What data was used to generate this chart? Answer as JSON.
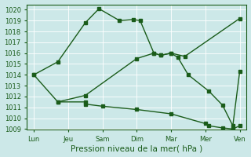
{
  "background_color": "#cce8e8",
  "grid_color": "#ffffff",
  "line_color": "#1a5c1a",
  "xlabel": "Pression niveau de la mer( hPa )",
  "ylim": [
    1009,
    1020.5
  ],
  "yticks": [
    1009,
    1010,
    1011,
    1012,
    1013,
    1014,
    1015,
    1016,
    1017,
    1018,
    1019,
    1020
  ],
  "x_labels": [
    "Lun",
    "Jeu",
    "Sam",
    "Dim",
    "Mar",
    "Mer",
    "Ven"
  ],
  "x_positions": [
    0,
    1,
    2,
    3,
    4,
    5,
    6
  ],
  "xlim": [
    -0.2,
    6.2
  ],
  "series1_x": [
    0,
    0.7,
    1.5,
    1.9,
    2.5,
    2.9,
    3.1,
    3.5,
    3.7,
    4.0,
    4.4,
    6.0
  ],
  "series1_y": [
    1014.0,
    1015.2,
    1018.8,
    1020.1,
    1019.0,
    1019.1,
    1019.0,
    1016.0,
    1015.8,
    1016.0,
    1015.7,
    1019.2
  ],
  "series2_x": [
    0.7,
    1.5,
    3.0,
    3.5,
    3.7,
    4.0,
    4.2,
    4.5,
    5.1,
    5.5,
    5.8,
    6.0
  ],
  "series2_y": [
    1011.5,
    1012.1,
    1015.5,
    1016.0,
    1015.8,
    1016.0,
    1015.6,
    1014.0,
    1012.5,
    1011.2,
    1009.3,
    1014.3
  ],
  "series3_x": [
    0,
    0.7,
    1.5,
    1.5,
    2.0,
    3.0,
    4.0,
    5.0,
    5.1,
    5.5,
    5.8,
    6.0
  ],
  "series3_y": [
    1014.0,
    1011.5,
    1011.5,
    1011.3,
    1011.1,
    1010.8,
    1010.4,
    1009.5,
    1009.3,
    1009.1,
    1009.0,
    1009.3
  ],
  "marker_size": 2.5,
  "linewidth": 1.0,
  "xlabel_fontsize": 7.5,
  "tick_fontsize": 6.0
}
